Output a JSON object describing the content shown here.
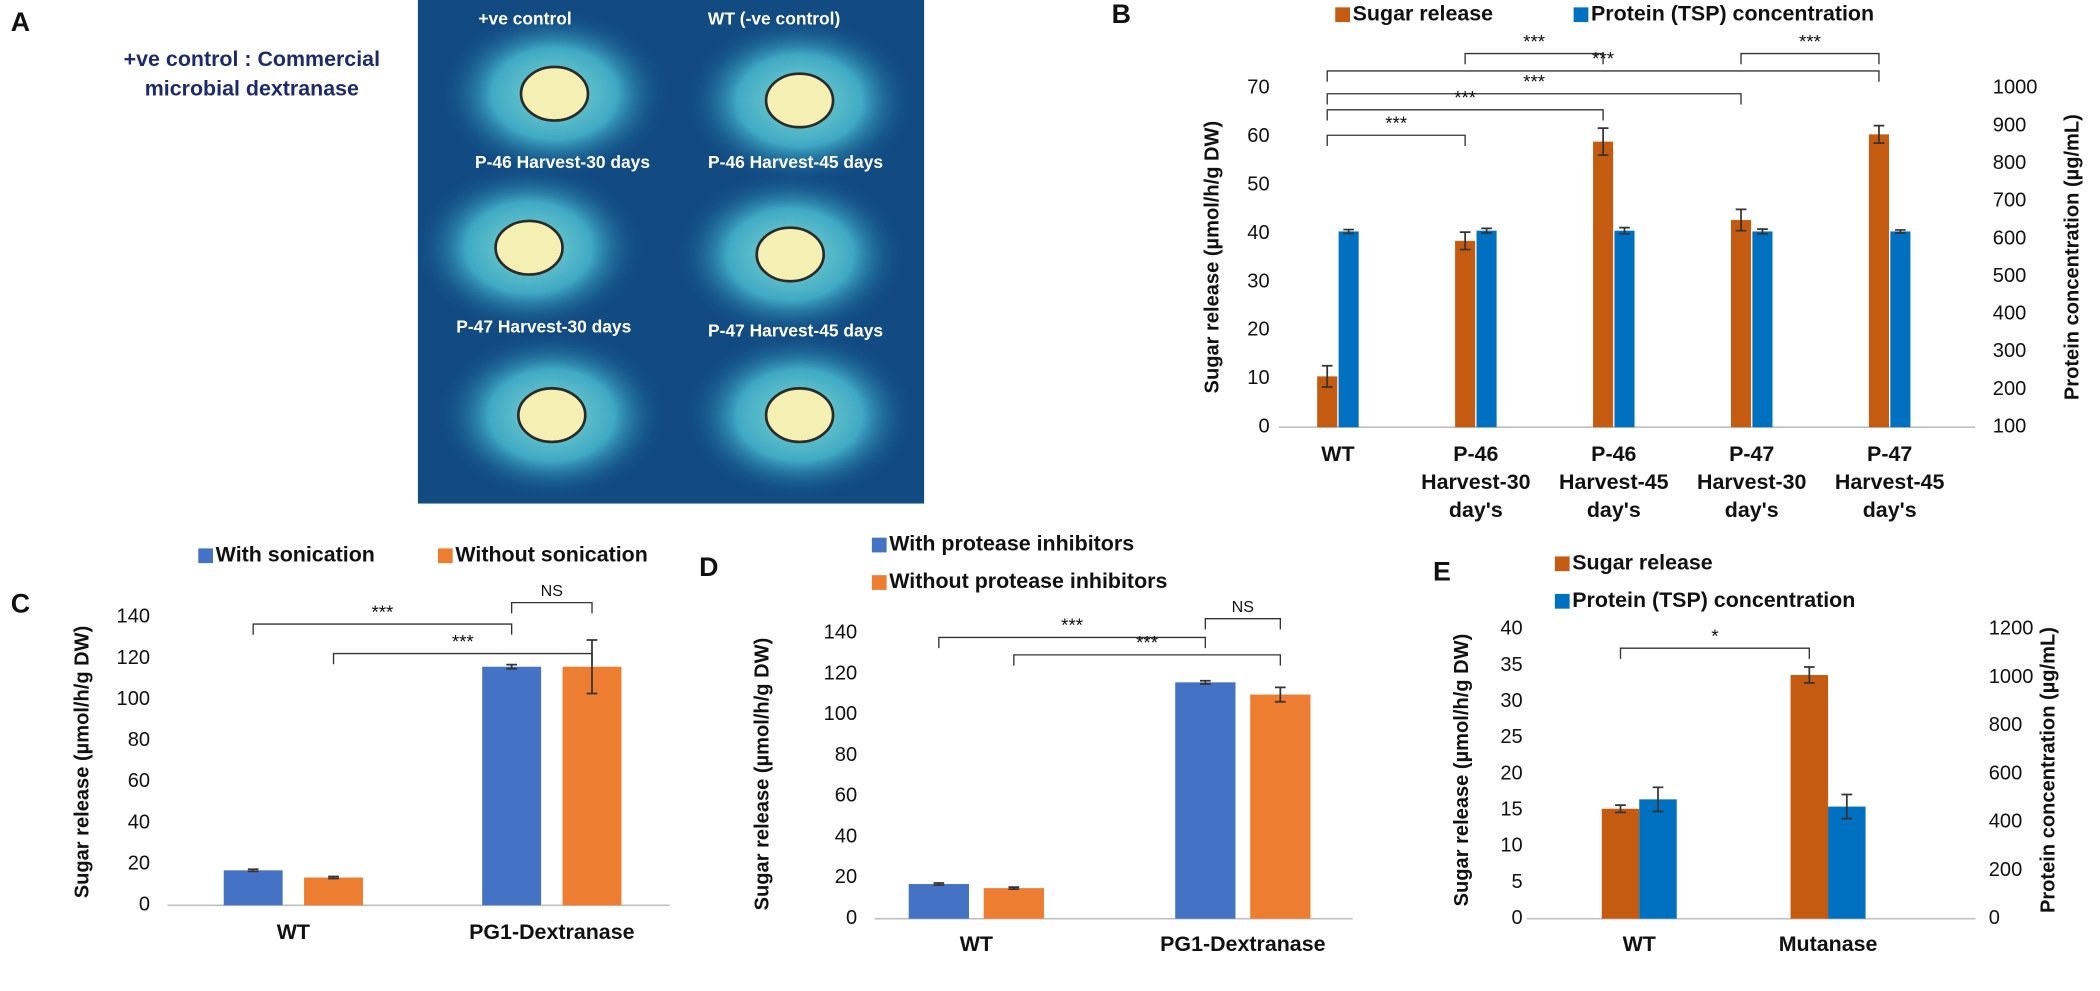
{
  "panel_labels": [
    "A",
    "B",
    "C",
    "D",
    "E"
  ],
  "panel_a": {
    "caption": [
      "+ve control : Commercial",
      "microbial dextranase"
    ],
    "wells": [
      "+ve control",
      "WT (-ve control)",
      "P-46 Harvest-30 days",
      "P-46 Harvest-45 days",
      "P-47 Harvest-30 days",
      "P-47 Harvest-45 days"
    ]
  },
  "chart_data": [
    {
      "type": "bar",
      "categories": [
        [
          "WT"
        ],
        [
          "P-46",
          "Harvest-30",
          "day's"
        ],
        [
          "P-46",
          "Harvest-45",
          "day's"
        ],
        [
          "P-47",
          "Harvest-30",
          "day's"
        ],
        [
          "P-47",
          "Harvest-45",
          "day's"
        ]
      ],
      "series": [
        {
          "name": "Sugar release",
          "color": "#c55a11",
          "values": [
            10.5,
            38.5,
            59,
            42.8,
            60.5
          ],
          "errors": [
            2.2,
            1.8,
            2.8,
            2.2,
            1.8
          ]
        },
        {
          "name": "Protein (TSP) concentration",
          "color": "#0070c0",
          "axis": "y2",
          "values": [
            620,
            622,
            622,
            620,
            620
          ],
          "errors": [
            5,
            6,
            8,
            6,
            4
          ]
        }
      ],
      "ylabel": "Sugar release (µmol/h/g DW)",
      "y2label": "Protein concentration (µg/mL)",
      "ylim": [
        0,
        70
      ],
      "yticks": [
        0,
        10,
        20,
        30,
        40,
        50,
        60,
        70
      ],
      "y2lim": [
        100,
        1000
      ],
      "y2ticks": [
        100,
        200,
        300,
        400,
        500,
        600,
        700,
        800,
        900,
        1000
      ],
      "brackets": [
        {
          "from": [
            1,
            0
          ],
          "to": [
            2,
            0
          ],
          "label": "***"
        },
        {
          "from": [
            3,
            0
          ],
          "to": [
            4,
            0
          ],
          "label": "***"
        },
        {
          "from": [
            0,
            0
          ],
          "to": [
            4,
            0
          ],
          "label": "***"
        },
        {
          "from": [
            0,
            0
          ],
          "to": [
            3,
            0
          ],
          "label": "***"
        },
        {
          "from": [
            0,
            0
          ],
          "to": [
            2,
            0
          ],
          "label": "***"
        },
        {
          "from": [
            0,
            0
          ],
          "to": [
            1,
            0
          ],
          "label": "***"
        }
      ]
    },
    {
      "type": "bar",
      "categories": [
        "WT",
        "PG1-Dextranase"
      ],
      "series": [
        {
          "name": "With sonication",
          "color": "#4472c4",
          "values": [
            17,
            116
          ],
          "errors": [
            0.5,
            1
          ]
        },
        {
          "name": "Without sonication",
          "color": "#ed7d31",
          "values": [
            13.5,
            116
          ],
          "errors": [
            0.5,
            13
          ]
        }
      ],
      "ylabel": "Sugar release (µmol/h/g DW)",
      "ylim": [
        0,
        140
      ],
      "yticks": [
        0,
        20,
        40,
        60,
        80,
        100,
        120,
        140
      ],
      "brackets": [
        {
          "from": [
            0,
            0
          ],
          "to": [
            1,
            0
          ],
          "label": "***"
        },
        {
          "from": [
            0,
            1
          ],
          "to": [
            1,
            1
          ],
          "label": "***"
        },
        {
          "from": [
            1,
            0
          ],
          "to": [
            1,
            1
          ],
          "label": "NS"
        }
      ]
    },
    {
      "type": "bar",
      "categories": [
        "WT",
        "PG1-Dextranase"
      ],
      "series": [
        {
          "name": "With protease inhibitors",
          "color": "#4472c4",
          "values": [
            17,
            116
          ],
          "errors": [
            0.5,
            0.8
          ]
        },
        {
          "name": "Without protease inhibitors",
          "color": "#ed7d31",
          "values": [
            15,
            110
          ],
          "errors": [
            0.5,
            3.5
          ]
        }
      ],
      "ylabel": "Sugar release (µmol/h/g DW)",
      "ylim": [
        0,
        140
      ],
      "yticks": [
        0,
        20,
        40,
        60,
        80,
        100,
        120,
        140
      ],
      "brackets": [
        {
          "from": [
            0,
            0
          ],
          "to": [
            1,
            0
          ],
          "label": "***"
        },
        {
          "from": [
            0,
            1
          ],
          "to": [
            1,
            1
          ],
          "label": "***"
        },
        {
          "from": [
            1,
            0
          ],
          "to": [
            1,
            1
          ],
          "label": "NS"
        }
      ]
    },
    {
      "type": "bar",
      "categories": [
        "WT",
        "Mutanase"
      ],
      "series": [
        {
          "name": "Sugar release",
          "color": "#c55a11",
          "values": [
            15.2,
            33.7
          ],
          "errors": [
            0.5,
            1.1
          ]
        },
        {
          "name": "Protein (TSP) concentration",
          "color": "#0070c0",
          "axis": "y2",
          "values": [
            495,
            465
          ],
          "errors": [
            50,
            50
          ]
        }
      ],
      "ylabel": "Sugar release (µmol/h/g DW)",
      "y2label": "Protein concentration (µg/mL)",
      "ylim": [
        0,
        40
      ],
      "yticks": [
        0,
        5,
        10,
        15,
        20,
        25,
        30,
        35,
        40
      ],
      "y2lim": [
        0,
        1200
      ],
      "y2ticks": [
        0,
        200,
        400,
        600,
        800,
        1000,
        1200
      ],
      "brackets": [
        {
          "from": [
            0,
            0
          ],
          "to": [
            1,
            0
          ],
          "label": "*"
        }
      ]
    }
  ]
}
